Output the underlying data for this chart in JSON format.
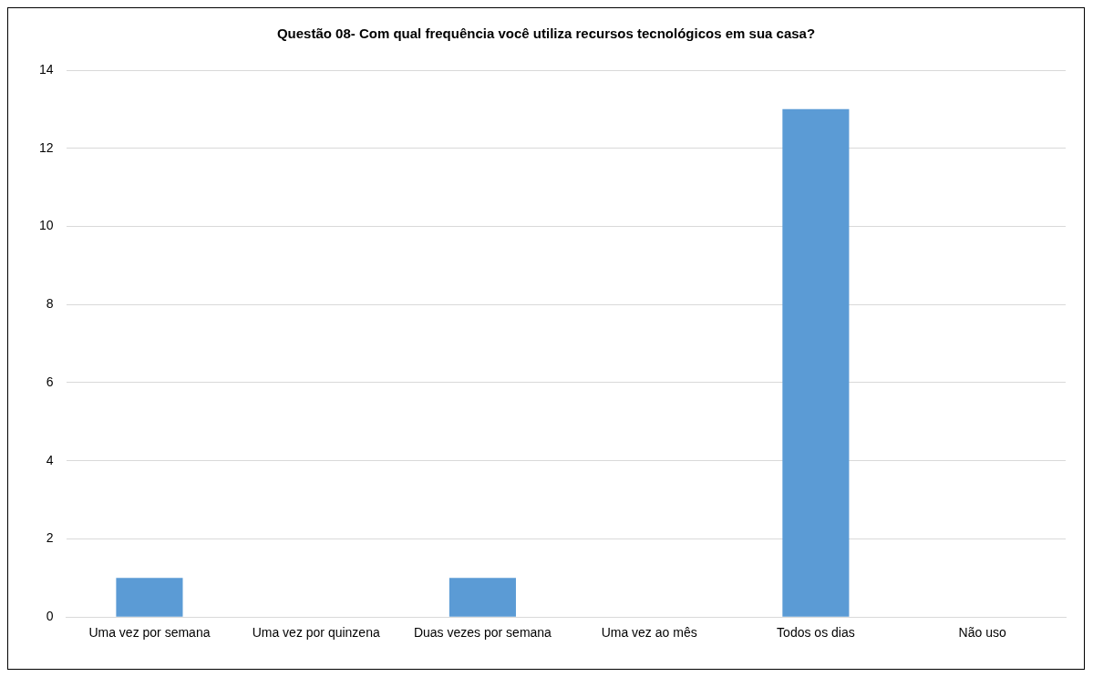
{
  "chart_data": {
    "type": "bar",
    "title": "Questão 08- Com qual frequência você utiliza recursos tecnológicos em sua casa?",
    "categories": [
      "Uma vez por semana",
      "Uma vez por quinzena",
      "Duas vezes por semana",
      "Uma vez ao mês",
      "Todos os dias",
      "Não uso"
    ],
    "values": [
      1,
      0,
      1,
      0,
      13,
      0
    ],
    "color": "#5b9bd5",
    "ylim": [
      0,
      14
    ],
    "yticks": [
      0,
      2,
      4,
      6,
      8,
      10,
      12,
      14
    ],
    "grid": "y",
    "legend": false
  }
}
